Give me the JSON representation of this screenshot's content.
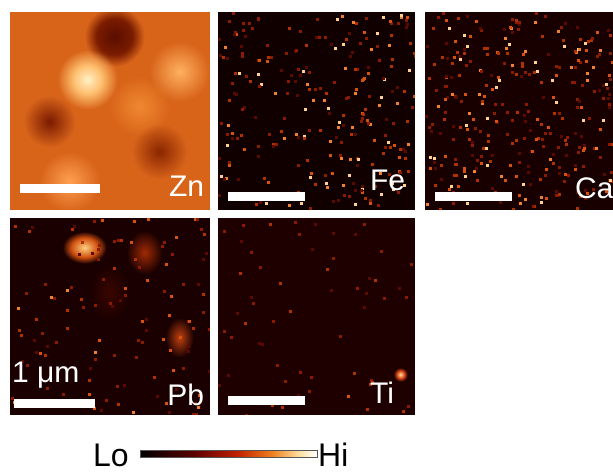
{
  "panels": [
    {
      "label": "Zn"
    },
    {
      "label": "Fe"
    },
    {
      "label": "Ca"
    },
    {
      "label": "Pb"
    },
    {
      "label": "Ti"
    }
  ],
  "scale_bar": {
    "label": "1 μm"
  },
  "colorbar": {
    "low": "Lo",
    "high": "Hi"
  }
}
